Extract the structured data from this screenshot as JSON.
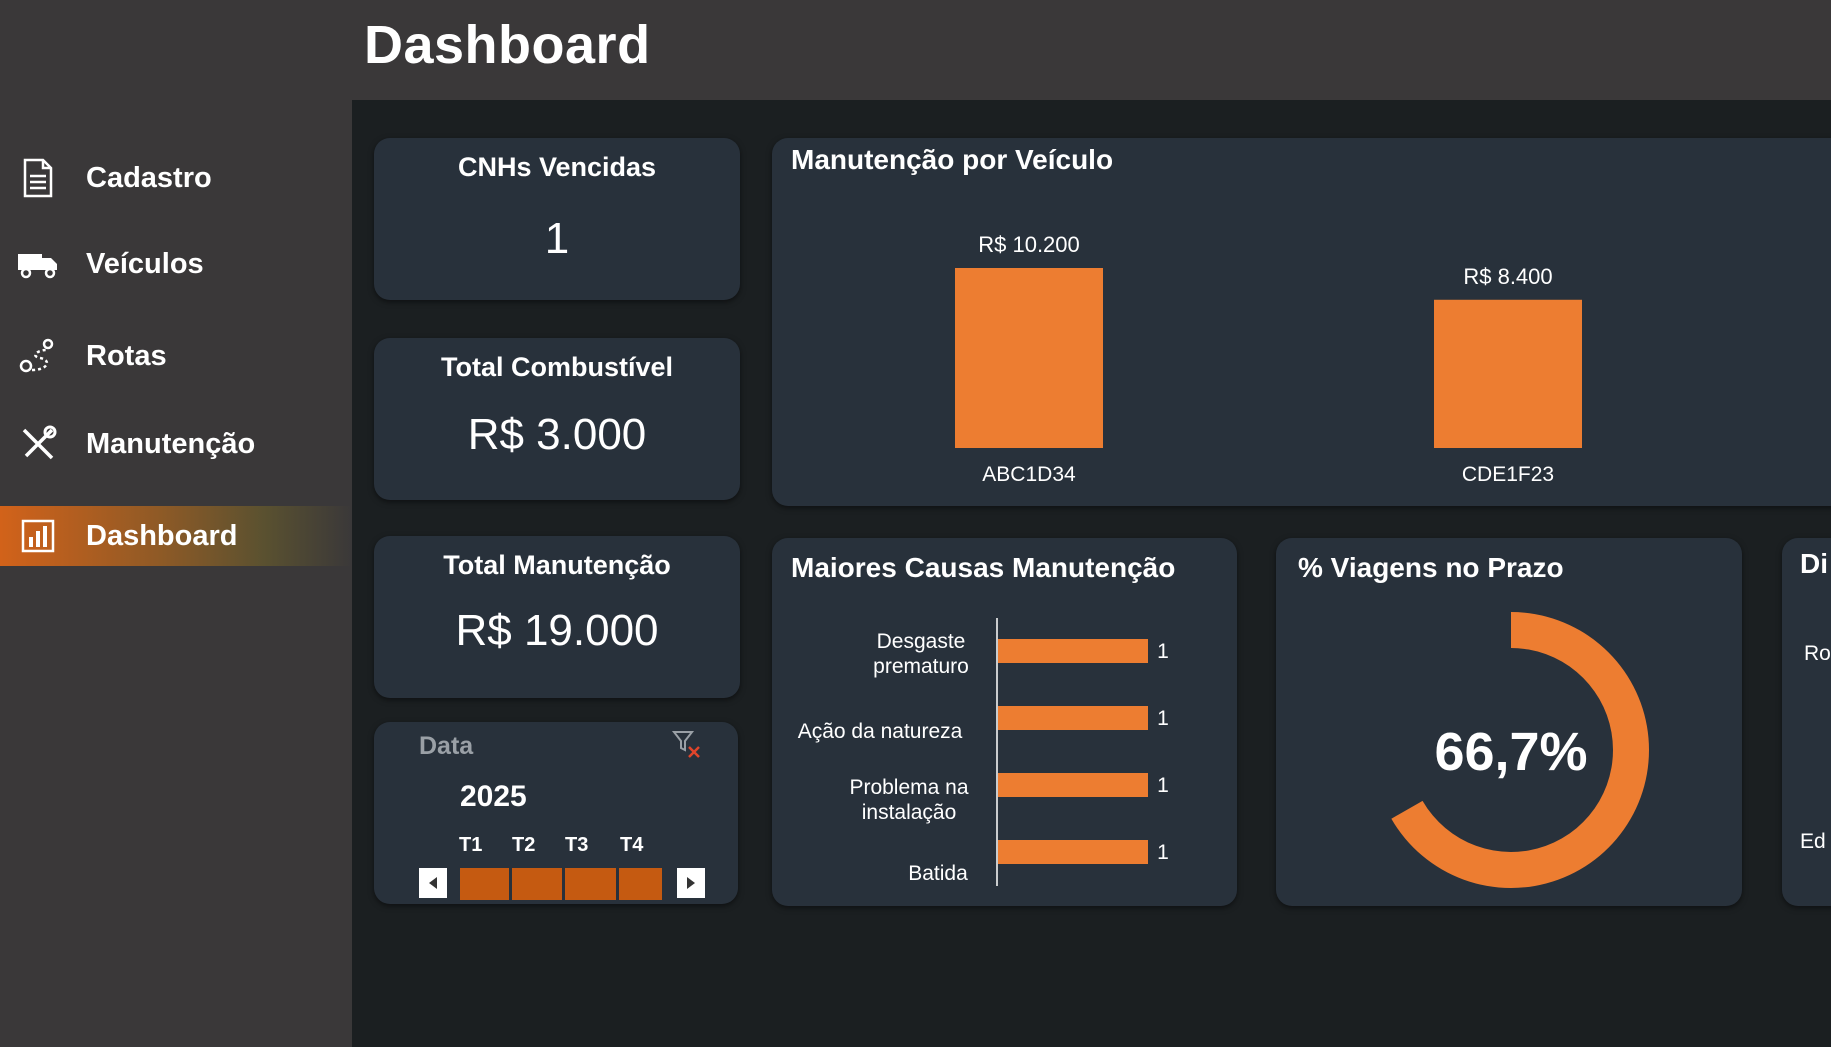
{
  "header": {
    "title": "Dashboard"
  },
  "sidebar": {
    "items": [
      {
        "label": "Cadastro",
        "icon": "document-icon"
      },
      {
        "label": "Veículos",
        "icon": "truck-icon"
      },
      {
        "label": "Rotas",
        "icon": "route-icon"
      },
      {
        "label": "Manutenção",
        "icon": "tools-icon"
      },
      {
        "label": "Dashboard",
        "icon": "bar-chart-icon",
        "active": true
      }
    ]
  },
  "kpis": [
    {
      "title": "CNHs Vencidas",
      "value": "1"
    },
    {
      "title": "Total Combustível",
      "value": "R$ 3.000"
    },
    {
      "title": "Total Manutenção",
      "value": "R$ 19.000"
    }
  ],
  "slicer": {
    "label": "Data",
    "year": "2025",
    "quarters": [
      "T1",
      "T2",
      "T3",
      "T4"
    ]
  },
  "colors": {
    "accent": "#ed7d31",
    "slicer_fill": "#c55a11",
    "card": "#28313b",
    "sidebar": "#3a3839",
    "background": "#1b1f21"
  },
  "chart_data": [
    {
      "type": "bar",
      "title": "Manutenção por Veículo",
      "categories": [
        "ABC1D34",
        "CDE1F23"
      ],
      "values": [
        10200,
        8400
      ],
      "data_labels": [
        "R$ 10.200",
        "R$ 8.400"
      ]
    },
    {
      "type": "bar",
      "orientation": "horizontal",
      "title": "Maiores Causas Manutenção",
      "categories": [
        "Desgaste prematuro",
        "Ação da natureza",
        "Problema na instalação",
        "Batida"
      ],
      "values": [
        1,
        1,
        1,
        1
      ],
      "data_labels": [
        "1",
        "1",
        "1",
        "1"
      ]
    },
    {
      "type": "pie",
      "title": "% Viagens no Prazo",
      "values": [
        66.7,
        33.3
      ],
      "center_label": "66,7%"
    }
  ],
  "partial_card": {
    "title": "Di",
    "lines": [
      "Ro",
      "Ed"
    ]
  }
}
